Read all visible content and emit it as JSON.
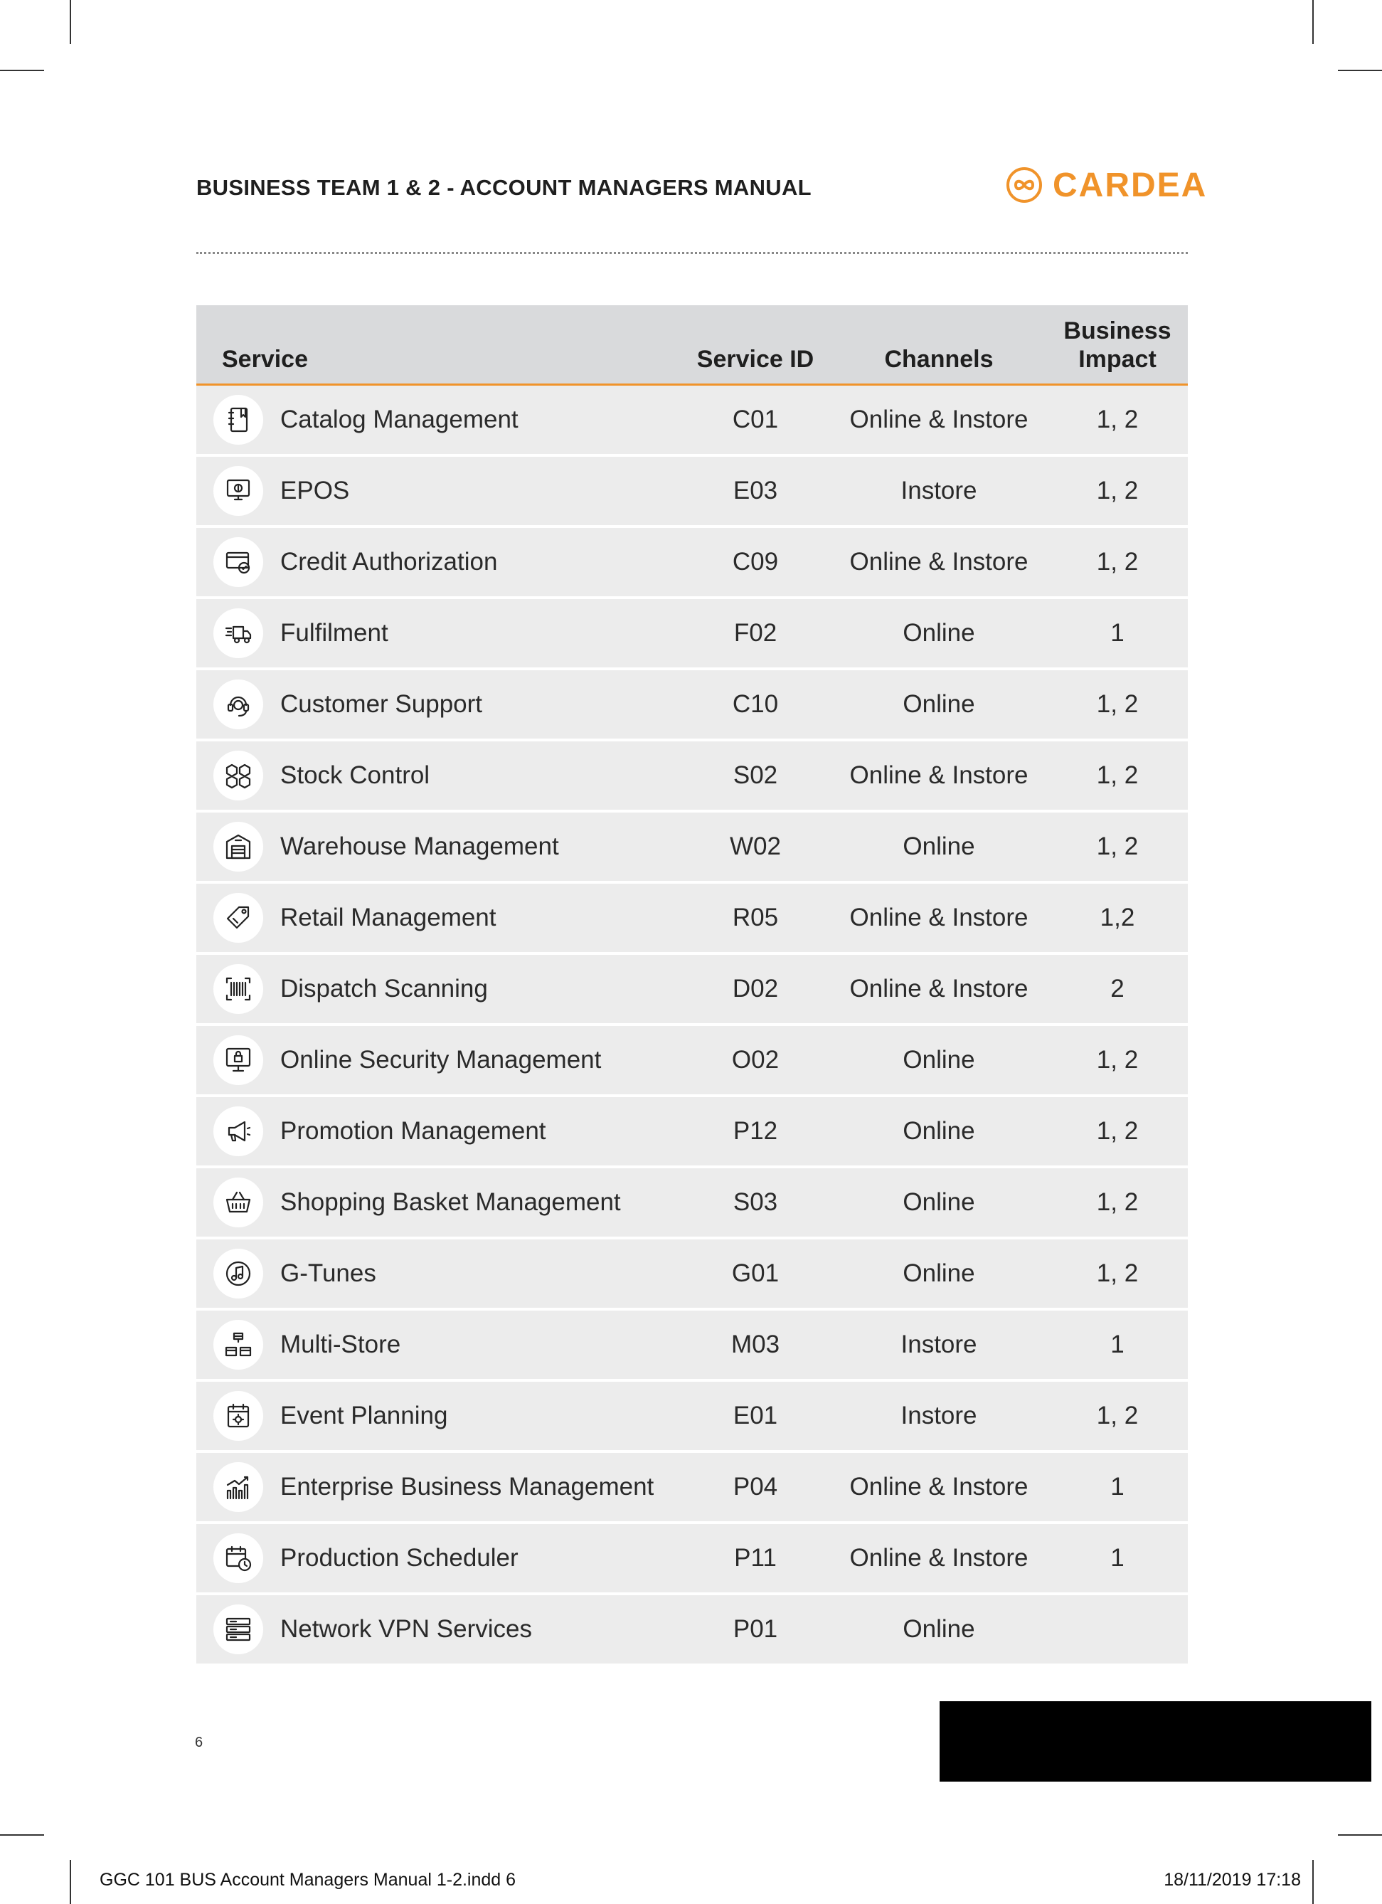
{
  "header": {
    "title": "BUSINESS TEAM 1 & 2 - ACCOUNT MANAGERS MANUAL",
    "logo_text": "CARDEA",
    "logo_color": "#f0932a"
  },
  "table": {
    "columns": {
      "service": "Service",
      "service_id": "Service ID",
      "channels": "Channels",
      "impact_line1": "Business",
      "impact_line2": "Impact"
    },
    "rows": [
      {
        "icon": "notebook-icon",
        "service": "Catalog Management",
        "id": "C01",
        "channels": "Online & Instore",
        "impact": "1, 2"
      },
      {
        "icon": "pos-terminal-icon",
        "service": "EPOS",
        "id": "E03",
        "channels": "Instore",
        "impact": "1, 2"
      },
      {
        "icon": "credit-card-check-icon",
        "service": "Credit Authorization",
        "id": "C09",
        "channels": "Online & Instore",
        "impact": "1, 2"
      },
      {
        "icon": "delivery-truck-icon",
        "service": "Fulfilment",
        "id": "F02",
        "channels": "Online",
        "impact": "1"
      },
      {
        "icon": "headset-icon",
        "service": "Customer Support",
        "id": "C10",
        "channels": "Online",
        "impact": "1, 2"
      },
      {
        "icon": "boxes-icon",
        "service": "Stock Control",
        "id": "S02",
        "channels": "Online & Instore",
        "impact": "1, 2"
      },
      {
        "icon": "warehouse-icon",
        "service": "Warehouse Management",
        "id": "W02",
        "channels": "Online",
        "impact": "1, 2"
      },
      {
        "icon": "price-tag-icon",
        "service": "Retail Management",
        "id": "R05",
        "channels": "Online & Instore",
        "impact": "1,2"
      },
      {
        "icon": "barcode-scanner-icon",
        "service": "Dispatch Scanning",
        "id": "D02",
        "channels": "Online & Instore",
        "impact": "2"
      },
      {
        "icon": "secure-monitor-icon",
        "service": "Online Security Management",
        "id": "O02",
        "channels": "Online",
        "impact": "1, 2"
      },
      {
        "icon": "megaphone-icon",
        "service": "Promotion Management",
        "id": "P12",
        "channels": "Online",
        "impact": "1, 2"
      },
      {
        "icon": "shopping-basket-icon",
        "service": "Shopping Basket Management",
        "id": "S03",
        "channels": "Online",
        "impact": "1, 2"
      },
      {
        "icon": "music-note-icon",
        "service": "G-Tunes",
        "id": "G01",
        "channels": "Online",
        "impact": "1, 2"
      },
      {
        "icon": "multi-store-icon",
        "service": "Multi-Store",
        "id": "M03",
        "channels": "Instore",
        "impact": "1"
      },
      {
        "icon": "calendar-event-icon",
        "service": "Event Planning",
        "id": "E01",
        "channels": "Instore",
        "impact": "1, 2"
      },
      {
        "icon": "growth-chart-icon",
        "service": "Enterprise Business Management",
        "id": "P04",
        "channels": "Online & Instore",
        "impact": "1"
      },
      {
        "icon": "calendar-clock-icon",
        "service": "Production Scheduler",
        "id": "P11",
        "channels": "Online & Instore",
        "impact": "1"
      },
      {
        "icon": "server-stack-icon",
        "service": "Network VPN Services",
        "id": "P01",
        "channels": "Online",
        "impact": ""
      }
    ]
  },
  "footer": {
    "page_number": "6",
    "slug_left": "GGC 101 BUS Account Managers Manual 1-2.indd   6",
    "slug_right": "18/11/2019   17:18"
  }
}
